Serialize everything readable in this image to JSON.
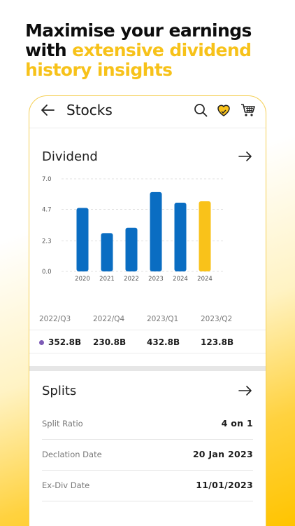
{
  "headline": {
    "line1": "Maximise your earnings",
    "line2_plain": "with ",
    "line2_accent": "extensive dividend",
    "line3_accent": "history insights"
  },
  "appbar": {
    "title": "Stocks",
    "icons": [
      "back-arrow-icon",
      "search-icon",
      "heart-icon",
      "cart-icon"
    ]
  },
  "dividend": {
    "title": "Dividend",
    "chart_data": {
      "type": "bar",
      "categories": [
        "2020",
        "2021",
        "2022",
        "2023",
        "2024",
        "2024"
      ],
      "values": [
        4.8,
        2.9,
        3.3,
        6.0,
        5.2,
        5.3
      ],
      "colors": [
        "#0a6dc2",
        "#0a6dc2",
        "#0a6dc2",
        "#0a6dc2",
        "#0a6dc2",
        "#f9c21a"
      ],
      "yticks": [
        "7.0",
        "4.7",
        "2.3",
        "0.0"
      ],
      "ylim": [
        0,
        7.0
      ],
      "grid": true
    },
    "quarters": [
      "2022/Q3",
      "2022/Q4",
      "2023/Q1",
      "2023/Q2"
    ],
    "values": [
      "352.8B",
      "230.8B",
      "432.8B",
      "123.8B"
    ],
    "dot_color": "#7d5bb6"
  },
  "splits": {
    "title": "Splits",
    "rows": [
      {
        "label": "Split Ratio",
        "value": "4 on 1"
      },
      {
        "label": "Declation Date",
        "value": "20 Jan 2023"
      },
      {
        "label": "Ex-Div Date",
        "value": "11/01/2023"
      }
    ]
  },
  "colors": {
    "accent": "#f9c21a",
    "bar": "#0a6dc2"
  }
}
